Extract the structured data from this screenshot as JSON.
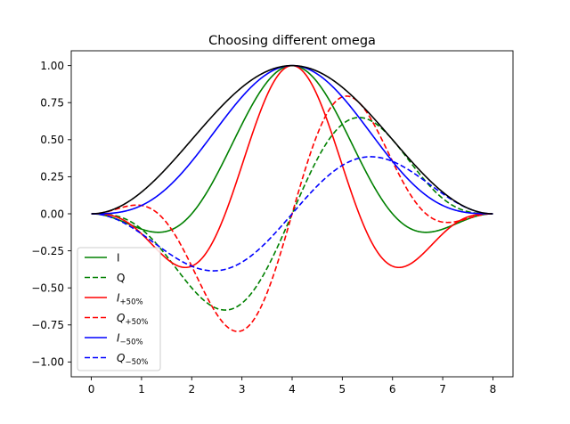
{
  "chart_data": {
    "type": "line",
    "title": "Choosing different omega",
    "xlabel": "",
    "ylabel": "",
    "xlim": [
      -0.4,
      8.4
    ],
    "ylim": [
      -1.1,
      1.1
    ],
    "x_ticks": [
      0,
      1,
      2,
      3,
      4,
      5,
      6,
      7,
      8
    ],
    "x_tick_labels": [
      "0",
      "1",
      "2",
      "3",
      "4",
      "5",
      "6",
      "7",
      "8"
    ],
    "y_ticks": [
      1.0,
      0.75,
      0.5,
      0.25,
      0.0,
      -0.25,
      -0.5,
      -0.75,
      -1.0
    ],
    "y_tick_labels": [
      "1.00",
      "0.75",
      "0.50",
      "0.25",
      "0.00",
      "−0.25",
      "−0.50",
      "−0.75",
      "−1.00"
    ],
    "grid": false,
    "legend_position": "lower-left",
    "x_range": [
      0,
      8
    ],
    "x_step": 0.04,
    "envelope": {
      "name": "",
      "formula": "sin^2(pi*t/8)",
      "peak": [
        4,
        1.0
      ],
      "color": "#000000",
      "style": "solid"
    },
    "series": [
      {
        "name": "I",
        "base": "I",
        "omega": 0.7854,
        "color": "#008000",
        "style": "solid"
      },
      {
        "name": "Q",
        "base": "Q",
        "omega": 0.7854,
        "color": "#008000",
        "style": "dashed"
      },
      {
        "name": "I",
        "sub": "+50%",
        "base": "I",
        "omega": 1.1781,
        "color": "#ff0000",
        "style": "solid"
      },
      {
        "name": "Q",
        "sub": "+50%",
        "base": "Q",
        "omega": 1.1781,
        "color": "#ff0000",
        "style": "dashed"
      },
      {
        "name": "I",
        "sub": "−50%",
        "base": "I",
        "omega": 0.3927,
        "color": "#0000ff",
        "style": "solid"
      },
      {
        "name": "Q",
        "sub": "−50%",
        "base": "Q",
        "omega": 0.3927,
        "color": "#0000ff",
        "style": "dashed"
      }
    ],
    "legend": [
      {
        "label": "I",
        "sub": ""
      },
      {
        "label": "Q",
        "sub": ""
      },
      {
        "label": "I",
        "sub": "+50%"
      },
      {
        "label": "Q",
        "sub": "+50%"
      },
      {
        "label": "I",
        "sub": "−50%"
      },
      {
        "label": "Q",
        "sub": "−50%"
      }
    ]
  }
}
